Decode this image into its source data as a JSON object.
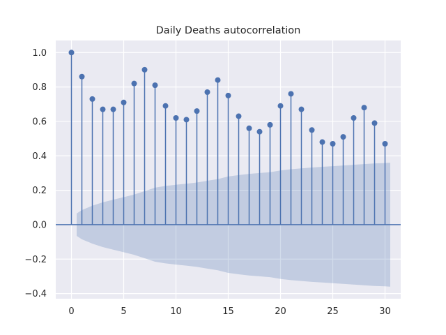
{
  "chart_data": {
    "type": "stem",
    "title": "Daily Deaths autocorrelation",
    "xlabel": "",
    "ylabel": "",
    "xlim": [
      -1.5,
      31.5
    ],
    "ylim": [
      -0.43,
      1.07
    ],
    "xticks": [
      0,
      5,
      10,
      15,
      20,
      25,
      30
    ],
    "xtick_labels": [
      "0",
      "5",
      "10",
      "15",
      "20",
      "25",
      "30"
    ],
    "yticks": [
      -0.4,
      -0.2,
      0.0,
      0.2,
      0.4,
      0.6,
      0.8,
      1.0
    ],
    "ytick_labels": [
      "−0.4",
      "−0.2",
      "0.0",
      "0.2",
      "0.4",
      "0.6",
      "0.8",
      "1.0"
    ],
    "grid": true,
    "lags": [
      0,
      1,
      2,
      3,
      4,
      5,
      6,
      7,
      8,
      9,
      10,
      11,
      12,
      13,
      14,
      15,
      16,
      17,
      18,
      19,
      20,
      21,
      22,
      23,
      24,
      25,
      26,
      27,
      28,
      29,
      30
    ],
    "acf": [
      1.0,
      0.86,
      0.73,
      0.67,
      0.67,
      0.71,
      0.82,
      0.9,
      0.81,
      0.69,
      0.62,
      0.61,
      0.66,
      0.77,
      0.84,
      0.75,
      0.63,
      0.56,
      0.54,
      0.58,
      0.69,
      0.76,
      0.67,
      0.55,
      0.48,
      0.47,
      0.51,
      0.62,
      0.68,
      0.59,
      0.47
    ],
    "confidence_lags": [
      0.5,
      1,
      2,
      3,
      4,
      5,
      6,
      7,
      8,
      9,
      10,
      11,
      12,
      13,
      14,
      15,
      16,
      17,
      18,
      19,
      20,
      21,
      22,
      23,
      24,
      25,
      26,
      27,
      28,
      29,
      30,
      30.5
    ],
    "confidence_upper": [
      0.065,
      0.085,
      0.11,
      0.13,
      0.145,
      0.16,
      0.175,
      0.195,
      0.215,
      0.225,
      0.232,
      0.238,
      0.245,
      0.255,
      0.265,
      0.28,
      0.288,
      0.295,
      0.3,
      0.305,
      0.315,
      0.322,
      0.327,
      0.332,
      0.336,
      0.34,
      0.344,
      0.348,
      0.352,
      0.356,
      0.358,
      0.36
    ],
    "colors": {
      "stem": "#4c72b0",
      "band": "#4c72b0",
      "plot_background": "#eaeaf2",
      "grid": "#ffffff",
      "text": "#262626"
    }
  }
}
